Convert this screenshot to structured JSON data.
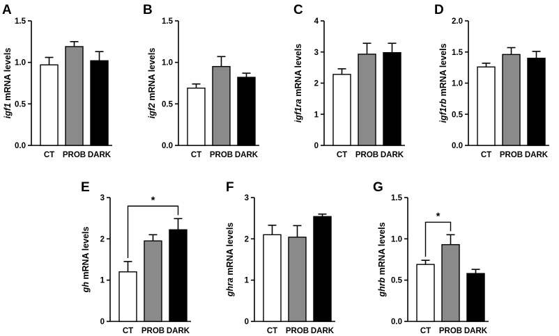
{
  "chart_data": [
    {
      "panel": "A",
      "type": "bar",
      "gene": "igf1",
      "ylabel_suffix": " mRNA levels",
      "categories": [
        "CT",
        "PROB",
        "DARK"
      ],
      "values": [
        0.97,
        1.19,
        1.02
      ],
      "errors": [
        0.09,
        0.06,
        0.11
      ],
      "ylim": [
        0,
        1.5
      ],
      "yticks": [
        "0.0",
        "0.5",
        "1.0",
        "1.5"
      ],
      "colors": [
        "#ffffff",
        "#8a8a8a",
        "#000000"
      ],
      "significance": []
    },
    {
      "panel": "B",
      "type": "bar",
      "gene": "igf2",
      "ylabel_suffix": " mRNA levels",
      "categories": [
        "CT",
        "PROB",
        "DARK"
      ],
      "values": [
        0.69,
        0.95,
        0.82
      ],
      "errors": [
        0.05,
        0.12,
        0.05
      ],
      "ylim": [
        0,
        1.5
      ],
      "yticks": [
        "0.0",
        "0.5",
        "1.0",
        "1.5"
      ],
      "colors": [
        "#ffffff",
        "#8a8a8a",
        "#000000"
      ],
      "significance": []
    },
    {
      "panel": "C",
      "type": "bar",
      "gene": "igf1ra",
      "ylabel_suffix": " mRNA levels",
      "categories": [
        "CT",
        "PROB",
        "DARK"
      ],
      "values": [
        2.28,
        2.93,
        2.98
      ],
      "errors": [
        0.18,
        0.35,
        0.3
      ],
      "ylim": [
        0,
        4
      ],
      "yticks": [
        "0",
        "1",
        "2",
        "3",
        "4"
      ],
      "colors": [
        "#ffffff",
        "#8a8a8a",
        "#000000"
      ],
      "significance": []
    },
    {
      "panel": "D",
      "type": "bar",
      "gene": "igf1rb",
      "ylabel_suffix": " mRNA levels",
      "categories": [
        "CT",
        "PROB",
        "DARK"
      ],
      "values": [
        1.26,
        1.46,
        1.4
      ],
      "errors": [
        0.06,
        0.11,
        0.11
      ],
      "ylim": [
        0,
        2.0
      ],
      "yticks": [
        "0.0",
        "0.5",
        "1.0",
        "1.5",
        "2.0"
      ],
      "colors": [
        "#ffffff",
        "#8a8a8a",
        "#000000"
      ],
      "significance": []
    },
    {
      "panel": "E",
      "type": "bar",
      "gene": "gh",
      "ylabel_suffix": " mRNA levels",
      "categories": [
        "CT",
        "PROB",
        "DARK"
      ],
      "values": [
        1.2,
        1.95,
        2.22
      ],
      "errors": [
        0.25,
        0.15,
        0.27
      ],
      "ylim": [
        0,
        3
      ],
      "yticks": [
        "0",
        "1",
        "2",
        "3"
      ],
      "colors": [
        "#ffffff",
        "#8a8a8a",
        "#000000"
      ],
      "significance": [
        {
          "from": 0,
          "to": 2,
          "label": "*"
        }
      ]
    },
    {
      "panel": "F",
      "type": "bar",
      "gene": "ghra",
      "ylabel_suffix": " mRNA levels",
      "categories": [
        "CT",
        "PROB",
        "DARK"
      ],
      "values": [
        2.1,
        2.04,
        2.54
      ],
      "errors": [
        0.23,
        0.28,
        0.06
      ],
      "ylim": [
        0,
        3
      ],
      "yticks": [
        "0",
        "1",
        "2",
        "3"
      ],
      "colors": [
        "#ffffff",
        "#8a8a8a",
        "#000000"
      ],
      "significance": []
    },
    {
      "panel": "G",
      "type": "bar",
      "gene": "ghrb",
      "ylabel_suffix": " mRNA levels",
      "categories": [
        "CT",
        "PROB",
        "DARK"
      ],
      "values": [
        0.69,
        0.93,
        0.58
      ],
      "errors": [
        0.05,
        0.12,
        0.05
      ],
      "ylim": [
        0,
        1.5
      ],
      "yticks": [
        "0.0",
        "0.5",
        "1.0",
        "1.5"
      ],
      "colors": [
        "#ffffff",
        "#8a8a8a",
        "#000000"
      ],
      "significance": [
        {
          "from": 0,
          "to": 1,
          "label": "*"
        }
      ]
    }
  ]
}
